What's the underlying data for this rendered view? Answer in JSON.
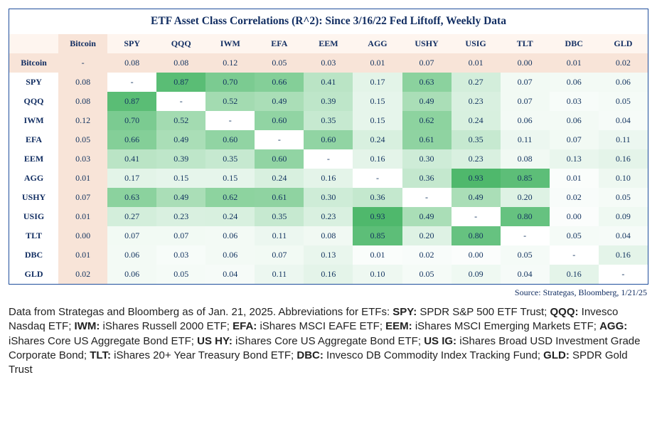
{
  "title": "ETF Asset Class Correlations (R^2): Since 3/16/22 Fed Liftoff, Weekly Data",
  "source": "Source: Strategas, Bloomberg, 1/21/25",
  "caption_intro": "Data from Strategas and Bloomberg as of Jan. 21, 2025. Abbreviations for ETFs: ",
  "definitions": [
    {
      "abbr": "SPY:",
      "desc": " SPDR S&P 500 ETF Trust; "
    },
    {
      "abbr": "QQQ:",
      "desc": " Invesco Nasdaq ETF; "
    },
    {
      "abbr": "IWM:",
      "desc": " iShares Russell 2000 ETF; "
    },
    {
      "abbr": "EFA:",
      "desc": " iShares MSCI EAFE ETF; "
    },
    {
      "abbr": "EEM:",
      "desc": " iShares MSCI Emerging Markets ETF; "
    },
    {
      "abbr": "AGG:",
      "desc": " iShares Core US Aggregate Bond ETF; "
    },
    {
      "abbr": "US HY:",
      "desc": " iShares Core US Aggregate Bond ETF; "
    },
    {
      "abbr": "US IG:",
      "desc": " iShares Broad USD Investment Grade Corporate Bond; "
    },
    {
      "abbr": "TLT:",
      "desc": "  iShares 20+ Year Treasury Bond ETF; "
    },
    {
      "abbr": "DBC:",
      "desc": " Invesco DB Commodity Index Tracking Fund; "
    },
    {
      "abbr": "GLD:",
      "desc": " SPDR Gold Trust"
    }
  ],
  "heatmap": {
    "type": "heatmap",
    "font_family": "Georgia, serif",
    "header_fontsize": 12,
    "cell_fontsize": 12,
    "title_fontsize": 15.5,
    "title_color": "#122e62",
    "header_color": "#122e62",
    "value_color": "#12335f",
    "border_color": "#1f4e9c",
    "bitcoin_bg": "#f8e4d8",
    "header_row_bg": "#fef5ef",
    "diag_text": "-",
    "color_scale": {
      "type": "linear",
      "stops": [
        {
          "v": 0.0,
          "color": "#fbfdfc"
        },
        {
          "v": 0.1,
          "color": "#eef8f1"
        },
        {
          "v": 0.2,
          "color": "#def2e4"
        },
        {
          "v": 0.35,
          "color": "#c6e9d0"
        },
        {
          "v": 0.5,
          "color": "#a8ddb5"
        },
        {
          "v": 0.65,
          "color": "#86d09a"
        },
        {
          "v": 0.8,
          "color": "#66c280"
        },
        {
          "v": 0.93,
          "color": "#4fb86c"
        }
      ]
    },
    "columns": [
      "Bitcoin",
      "SPY",
      "QQQ",
      "IWM",
      "EFA",
      "EEM",
      "AGG",
      "USHY",
      "USIG",
      "TLT",
      "DBC",
      "GLD"
    ],
    "rows": [
      "Bitcoin",
      "SPY",
      "QQQ",
      "IWM",
      "EFA",
      "EEM",
      "AGG",
      "USHY",
      "USIG",
      "TLT",
      "DBC",
      "GLD"
    ],
    "matrix": [
      [
        null,
        0.08,
        0.08,
        0.12,
        0.05,
        0.03,
        0.01,
        0.07,
        0.01,
        0.0,
        0.01,
        0.02
      ],
      [
        0.08,
        null,
        0.87,
        0.7,
        0.66,
        0.41,
        0.17,
        0.63,
        0.27,
        0.07,
        0.06,
        0.06
      ],
      [
        0.08,
        0.87,
        null,
        0.52,
        0.49,
        0.39,
        0.15,
        0.49,
        0.23,
        0.07,
        0.03,
        0.05
      ],
      [
        0.12,
        0.7,
        0.52,
        null,
        0.6,
        0.35,
        0.15,
        0.62,
        0.24,
        0.06,
        0.06,
        0.04
      ],
      [
        0.05,
        0.66,
        0.49,
        0.6,
        null,
        0.6,
        0.24,
        0.61,
        0.35,
        0.11,
        0.07,
        0.11
      ],
      [
        0.03,
        0.41,
        0.39,
        0.35,
        0.6,
        null,
        0.16,
        0.3,
        0.23,
        0.08,
        0.13,
        0.16
      ],
      [
        0.01,
        0.17,
        0.15,
        0.15,
        0.24,
        0.16,
        null,
        0.36,
        0.93,
        0.85,
        0.01,
        0.1
      ],
      [
        0.07,
        0.63,
        0.49,
        0.62,
        0.61,
        0.3,
        0.36,
        null,
        0.49,
        0.2,
        0.02,
        0.05
      ],
      [
        0.01,
        0.27,
        0.23,
        0.24,
        0.35,
        0.23,
        0.93,
        0.49,
        null,
        0.8,
        0.0,
        0.09
      ],
      [
        0.0,
        0.07,
        0.07,
        0.06,
        0.11,
        0.08,
        0.85,
        0.2,
        0.8,
        null,
        0.05,
        0.04
      ],
      [
        0.01,
        0.06,
        0.03,
        0.06,
        0.07,
        0.13,
        0.01,
        0.02,
        0.0,
        0.05,
        null,
        0.16
      ],
      [
        0.02,
        0.06,
        0.05,
        0.04,
        0.11,
        0.16,
        0.1,
        0.05,
        0.09,
        0.04,
        0.16,
        null
      ]
    ]
  }
}
